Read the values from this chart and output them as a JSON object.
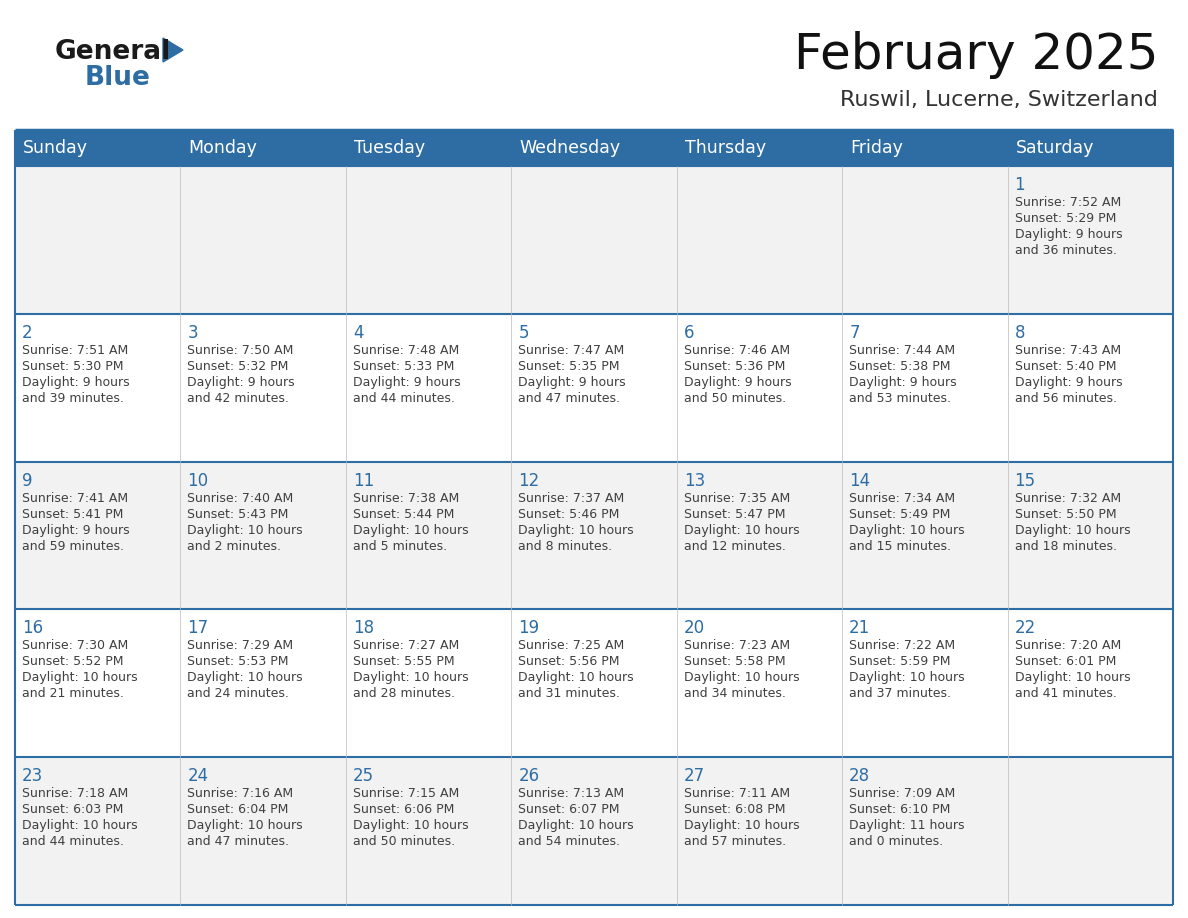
{
  "title": "February 2025",
  "subtitle": "Ruswil, Lucerne, Switzerland",
  "header_bg": "#2E6DA4",
  "header_text_color": "#FFFFFF",
  "cell_bg_odd": "#F2F2F2",
  "cell_bg_even": "#FFFFFF",
  "border_color": "#2E6DA4",
  "row_line_color": "#2E6DA4",
  "day_number_color": "#2E6DA4",
  "text_color": "#404040",
  "days_of_week": [
    "Sunday",
    "Monday",
    "Tuesday",
    "Wednesday",
    "Thursday",
    "Friday",
    "Saturday"
  ],
  "logo_general_color": "#1a1a1a",
  "logo_blue_color": "#2E6DA4",
  "calendar": [
    [
      null,
      null,
      null,
      null,
      null,
      null,
      {
        "day": 1,
        "sunrise": "7:52 AM",
        "sunset": "5:29 PM",
        "daylight": "9 hours",
        "daylight2": "and 36 minutes."
      }
    ],
    [
      {
        "day": 2,
        "sunrise": "7:51 AM",
        "sunset": "5:30 PM",
        "daylight": "9 hours",
        "daylight2": "and 39 minutes."
      },
      {
        "day": 3,
        "sunrise": "7:50 AM",
        "sunset": "5:32 PM",
        "daylight": "9 hours",
        "daylight2": "and 42 minutes."
      },
      {
        "day": 4,
        "sunrise": "7:48 AM",
        "sunset": "5:33 PM",
        "daylight": "9 hours",
        "daylight2": "and 44 minutes."
      },
      {
        "day": 5,
        "sunrise": "7:47 AM",
        "sunset": "5:35 PM",
        "daylight": "9 hours",
        "daylight2": "and 47 minutes."
      },
      {
        "day": 6,
        "sunrise": "7:46 AM",
        "sunset": "5:36 PM",
        "daylight": "9 hours",
        "daylight2": "and 50 minutes."
      },
      {
        "day": 7,
        "sunrise": "7:44 AM",
        "sunset": "5:38 PM",
        "daylight": "9 hours",
        "daylight2": "and 53 minutes."
      },
      {
        "day": 8,
        "sunrise": "7:43 AM",
        "sunset": "5:40 PM",
        "daylight": "9 hours",
        "daylight2": "and 56 minutes."
      }
    ],
    [
      {
        "day": 9,
        "sunrise": "7:41 AM",
        "sunset": "5:41 PM",
        "daylight": "9 hours",
        "daylight2": "and 59 minutes."
      },
      {
        "day": 10,
        "sunrise": "7:40 AM",
        "sunset": "5:43 PM",
        "daylight": "10 hours",
        "daylight2": "and 2 minutes."
      },
      {
        "day": 11,
        "sunrise": "7:38 AM",
        "sunset": "5:44 PM",
        "daylight": "10 hours",
        "daylight2": "and 5 minutes."
      },
      {
        "day": 12,
        "sunrise": "7:37 AM",
        "sunset": "5:46 PM",
        "daylight": "10 hours",
        "daylight2": "and 8 minutes."
      },
      {
        "day": 13,
        "sunrise": "7:35 AM",
        "sunset": "5:47 PM",
        "daylight": "10 hours",
        "daylight2": "and 12 minutes."
      },
      {
        "day": 14,
        "sunrise": "7:34 AM",
        "sunset": "5:49 PM",
        "daylight": "10 hours",
        "daylight2": "and 15 minutes."
      },
      {
        "day": 15,
        "sunrise": "7:32 AM",
        "sunset": "5:50 PM",
        "daylight": "10 hours",
        "daylight2": "and 18 minutes."
      }
    ],
    [
      {
        "day": 16,
        "sunrise": "7:30 AM",
        "sunset": "5:52 PM",
        "daylight": "10 hours",
        "daylight2": "and 21 minutes."
      },
      {
        "day": 17,
        "sunrise": "7:29 AM",
        "sunset": "5:53 PM",
        "daylight": "10 hours",
        "daylight2": "and 24 minutes."
      },
      {
        "day": 18,
        "sunrise": "7:27 AM",
        "sunset": "5:55 PM",
        "daylight": "10 hours",
        "daylight2": "and 28 minutes."
      },
      {
        "day": 19,
        "sunrise": "7:25 AM",
        "sunset": "5:56 PM",
        "daylight": "10 hours",
        "daylight2": "and 31 minutes."
      },
      {
        "day": 20,
        "sunrise": "7:23 AM",
        "sunset": "5:58 PM",
        "daylight": "10 hours",
        "daylight2": "and 34 minutes."
      },
      {
        "day": 21,
        "sunrise": "7:22 AM",
        "sunset": "5:59 PM",
        "daylight": "10 hours",
        "daylight2": "and 37 minutes."
      },
      {
        "day": 22,
        "sunrise": "7:20 AM",
        "sunset": "6:01 PM",
        "daylight": "10 hours",
        "daylight2": "and 41 minutes."
      }
    ],
    [
      {
        "day": 23,
        "sunrise": "7:18 AM",
        "sunset": "6:03 PM",
        "daylight": "10 hours",
        "daylight2": "and 44 minutes."
      },
      {
        "day": 24,
        "sunrise": "7:16 AM",
        "sunset": "6:04 PM",
        "daylight": "10 hours",
        "daylight2": "and 47 minutes."
      },
      {
        "day": 25,
        "sunrise": "7:15 AM",
        "sunset": "6:06 PM",
        "daylight": "10 hours",
        "daylight2": "and 50 minutes."
      },
      {
        "day": 26,
        "sunrise": "7:13 AM",
        "sunset": "6:07 PM",
        "daylight": "10 hours",
        "daylight2": "and 54 minutes."
      },
      {
        "day": 27,
        "sunrise": "7:11 AM",
        "sunset": "6:08 PM",
        "daylight": "10 hours",
        "daylight2": "and 57 minutes."
      },
      {
        "day": 28,
        "sunrise": "7:09 AM",
        "sunset": "6:10 PM",
        "daylight": "11 hours",
        "daylight2": "and 0 minutes."
      },
      null
    ]
  ]
}
